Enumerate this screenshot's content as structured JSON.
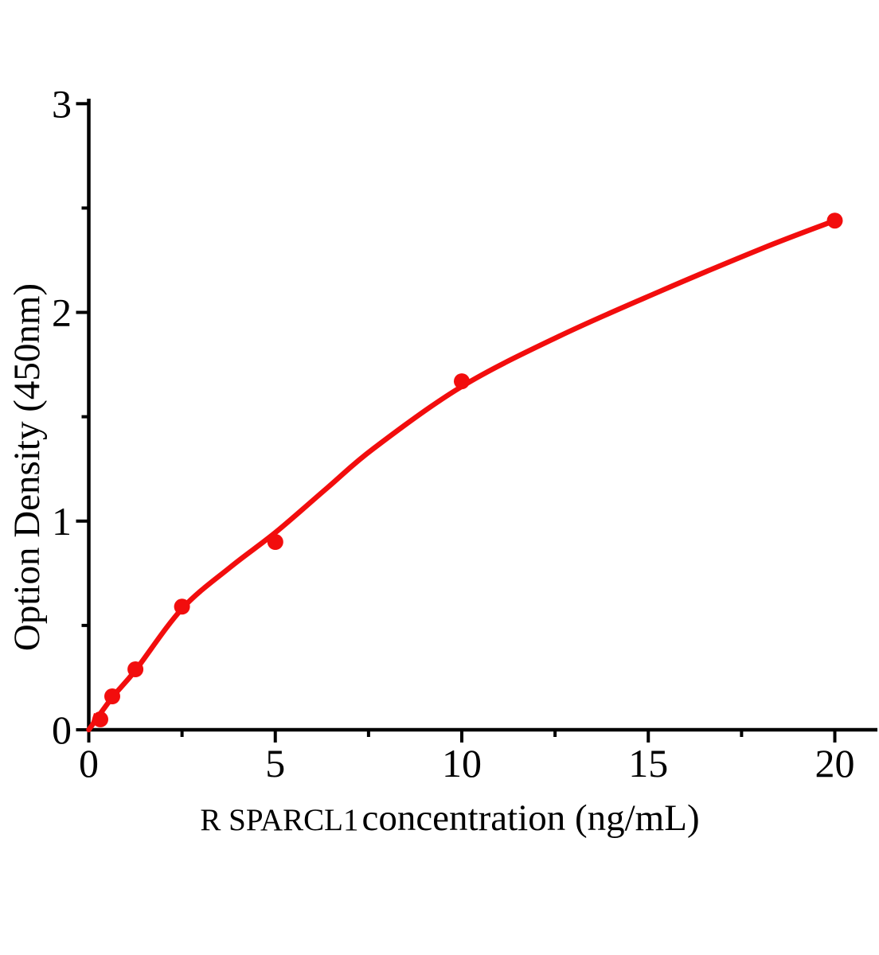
{
  "figure": {
    "background_color": "#ffffff",
    "accent_color": "#f20d0d",
    "axis_color": "#000000"
  },
  "chart_data": {
    "type": "scatter",
    "title": "",
    "xlabel": "R SPARCL1 concentration（ng/mL）",
    "xlabel_prefix": "R SPARCL1",
    "xlabel_rest": " concentration（ng/mL）",
    "ylabel": "Option Density（450nm）",
    "xlim": [
      0,
      20
    ],
    "ylim": [
      0,
      3
    ],
    "grid": false,
    "legend": "none",
    "x_major_ticks": [
      0,
      5,
      10,
      15,
      20
    ],
    "x_minor_ticks": [
      2.5,
      7.5,
      12.5,
      17.5
    ],
    "x_tick_labels": [
      "0",
      "5",
      "10",
      "15",
      "20"
    ],
    "y_major_ticks": [
      0,
      1,
      2,
      3
    ],
    "y_minor_ticks": [
      0.5,
      1.5,
      2.5
    ],
    "y_tick_labels": [
      "0",
      "1",
      "2",
      "3"
    ],
    "series": [
      {
        "name": "standard-points",
        "type": "scatter",
        "marker": "circle",
        "color": "#f20d0d",
        "points": [
          [
            0.31,
            0.05
          ],
          [
            0.63,
            0.16
          ],
          [
            1.25,
            0.29
          ],
          [
            2.5,
            0.59
          ],
          [
            5,
            0.9
          ],
          [
            10,
            1.67
          ],
          [
            20,
            2.44
          ]
        ]
      },
      {
        "name": "fit-curve",
        "type": "line",
        "color": "#f20d0d",
        "points": [
          [
            0,
            0
          ],
          [
            0.63,
            0.155
          ],
          [
            1.25,
            0.285
          ],
          [
            2.5,
            0.58
          ],
          [
            3.8,
            0.78
          ],
          [
            5,
            0.945
          ],
          [
            6.4,
            1.16
          ],
          [
            7.65,
            1.35
          ],
          [
            10,
            1.645
          ],
          [
            12.6,
            1.885
          ],
          [
            15.3,
            2.1
          ],
          [
            18.1,
            2.31
          ],
          [
            20,
            2.44
          ]
        ]
      }
    ]
  }
}
